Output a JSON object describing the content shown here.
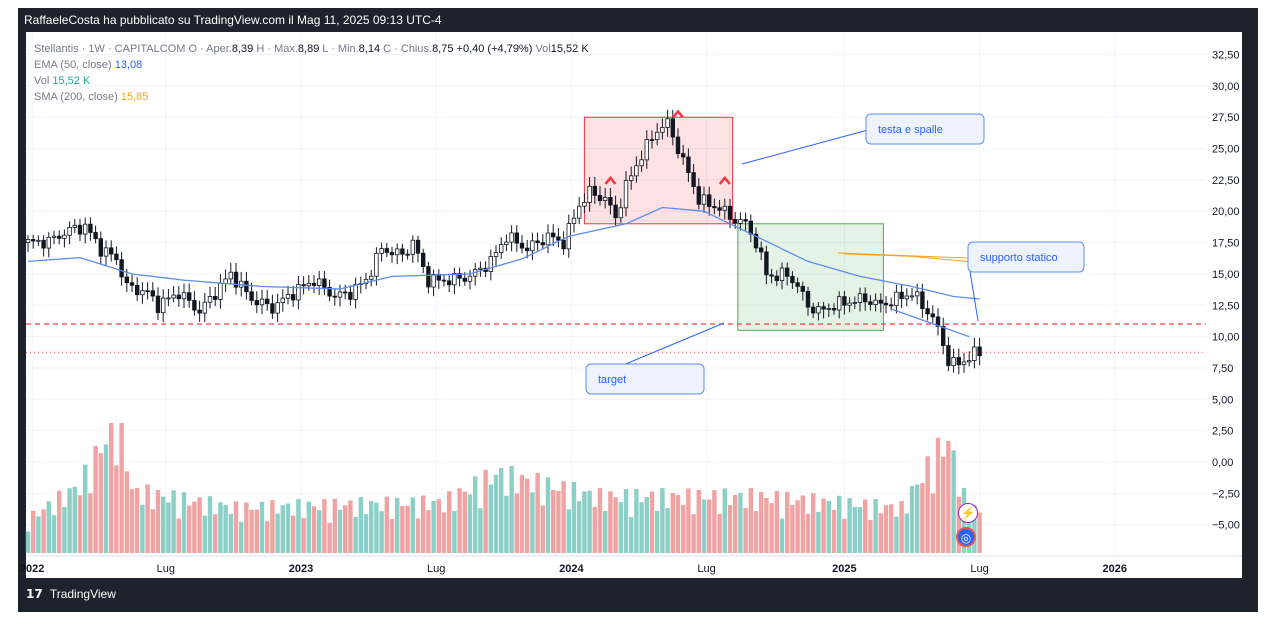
{
  "header": {
    "attribution": "RaffaeleCosta ha pubblicato su TradingView.com il Mag 11, 2025 09:13 UTC-4"
  },
  "legend": {
    "symbol": "Stellantis · 1W · CAPITALCOM",
    "o_label": "O · Aper.",
    "o_value": "8,39",
    "h_label": "H · Max.",
    "h_value": "8,89",
    "l_label": "L · Min.",
    "l_value": "8,14",
    "c_label": "C · Chius.",
    "c_value": "8,75",
    "change": "+0,40 (+4,79%)",
    "vol_label": "Vol",
    "vol_value": "15,52 K",
    "ema_label": "EMA (50, close)",
    "ema_value": "13,08",
    "volind_label": "Vol",
    "volind_value": "15,52 K",
    "sma_label": "SMA (200, close)",
    "sma_value": "15,85"
  },
  "annotations": {
    "head_shoulders": "testa e spalle",
    "static_support": "supporto statico",
    "target": "target"
  },
  "footer": {
    "brand": "TradingView",
    "logo": "17"
  },
  "colors": {
    "up": "#26a69a",
    "down": "#ef5350",
    "ema": "#5b8def",
    "vol_up": "#8ccfc7",
    "vol_down": "#efa3a3",
    "support": "#ef5350",
    "accent": "#2962ff"
  },
  "chart_data": {
    "type": "candlestick",
    "y_ticks": [
      "32,50",
      "30,00",
      "27,50",
      "25,00",
      "22,50",
      "20,00",
      "17,50",
      "15,00",
      "12,50",
      "10,00",
      "7,50",
      "5,00",
      "2,50",
      "0,00",
      "−2,50",
      "−5,00"
    ],
    "ylim": [
      -7.5,
      33.5
    ],
    "x_ticks": [
      {
        "label": "2022",
        "bold": true,
        "t": 0.8
      },
      {
        "label": "Lug",
        "bold": false,
        "t": 26.5
      },
      {
        "label": "2023",
        "bold": true,
        "t": 52.5
      },
      {
        "label": "Lug",
        "bold": false,
        "t": 78.5
      },
      {
        "label": "2024",
        "bold": true,
        "t": 104.5
      },
      {
        "label": "Lug",
        "bold": false,
        "t": 130.5
      },
      {
        "label": "2025",
        "bold": true,
        "t": 157
      },
      {
        "label": "Lug",
        "bold": false,
        "t": 183
      },
      {
        "label": "2026",
        "bold": true,
        "t": 209
      }
    ],
    "weeks_plotted": 184,
    "close_anchors": [
      [
        0,
        17.5
      ],
      [
        4,
        17.6
      ],
      [
        8,
        18.5
      ],
      [
        11,
        18.8
      ],
      [
        14,
        17.0
      ],
      [
        17,
        16.2
      ],
      [
        19,
        14.0
      ],
      [
        23,
        13.5
      ],
      [
        25,
        12.5
      ],
      [
        29,
        13.5
      ],
      [
        33,
        12.0
      ],
      [
        36,
        13.5
      ],
      [
        39,
        15.0
      ],
      [
        43,
        13.0
      ],
      [
        47,
        12.3
      ],
      [
        51,
        13.5
      ],
      [
        55,
        14.5
      ],
      [
        59,
        13.2
      ],
      [
        62,
        13.5
      ],
      [
        65,
        14.5
      ],
      [
        68,
        17.0
      ],
      [
        72,
        16.5
      ],
      [
        74,
        17.5
      ],
      [
        77,
        14.5
      ],
      [
        81,
        14.5
      ],
      [
        85,
        14.8
      ],
      [
        89,
        16.0
      ],
      [
        92,
        18.0
      ],
      [
        96,
        17.0
      ],
      [
        100,
        18.0
      ],
      [
        103,
        17.5
      ],
      [
        106,
        20.5
      ],
      [
        108,
        21.5
      ],
      [
        111,
        21.0
      ],
      [
        113,
        19.5
      ],
      [
        115,
        22.0
      ],
      [
        118,
        24.5
      ],
      [
        121,
        26.5
      ],
      [
        123,
        27.0
      ],
      [
        125,
        25.0
      ],
      [
        127,
        23.0
      ],
      [
        129,
        21.0
      ],
      [
        131,
        20.5
      ],
      [
        133,
        20.3
      ],
      [
        135,
        19.5
      ],
      [
        138,
        19.0
      ],
      [
        140,
        17.5
      ],
      [
        142,
        15.0
      ],
      [
        144,
        14.8
      ],
      [
        146,
        15.0
      ],
      [
        148,
        14.0
      ],
      [
        150,
        12.5
      ],
      [
        152,
        12.0
      ],
      [
        155,
        12.5
      ],
      [
        158,
        12.8
      ],
      [
        161,
        13.0
      ],
      [
        164,
        12.5
      ],
      [
        167,
        13.0
      ],
      [
        170,
        13.5
      ],
      [
        172,
        12.5
      ],
      [
        174,
        11.5
      ],
      [
        175,
        10.5
      ],
      [
        176,
        9.5
      ],
      [
        177,
        8.0
      ],
      [
        179,
        7.8
      ],
      [
        181,
        8.4
      ],
      [
        183,
        8.75
      ]
    ],
    "extremes": {
      "head_high": 27.0,
      "last_close": 8.75,
      "ema_last": 13.08,
      "sma_last": 15.85
    },
    "ema_anchors": [
      [
        0,
        16.0
      ],
      [
        10,
        16.3
      ],
      [
        20,
        15.0
      ],
      [
        30,
        14.5
      ],
      [
        45,
        14.0
      ],
      [
        60,
        13.8
      ],
      [
        70,
        14.8
      ],
      [
        85,
        15.0
      ],
      [
        95,
        16.2
      ],
      [
        104,
        18.0
      ],
      [
        115,
        19.0
      ],
      [
        122,
        20.3
      ],
      [
        130,
        20.0
      ],
      [
        140,
        18.0
      ],
      [
        150,
        16.0
      ],
      [
        160,
        14.8
      ],
      [
        170,
        14.0
      ],
      [
        178,
        13.2
      ],
      [
        183,
        13.0
      ]
    ],
    "support_level": 11.0,
    "last_price_level": 8.75,
    "volume_anchors": [
      [
        0,
        0.3
      ],
      [
        10,
        0.6
      ],
      [
        16,
        1.1
      ],
      [
        18,
        1.15
      ],
      [
        20,
        0.55
      ],
      [
        40,
        0.4
      ],
      [
        80,
        0.45
      ],
      [
        90,
        0.7
      ],
      [
        110,
        0.5
      ],
      [
        140,
        0.5
      ],
      [
        168,
        0.4
      ],
      [
        175,
        0.9
      ],
      [
        177,
        1.0
      ],
      [
        180,
        0.5
      ],
      [
        183,
        0.35
      ]
    ]
  }
}
